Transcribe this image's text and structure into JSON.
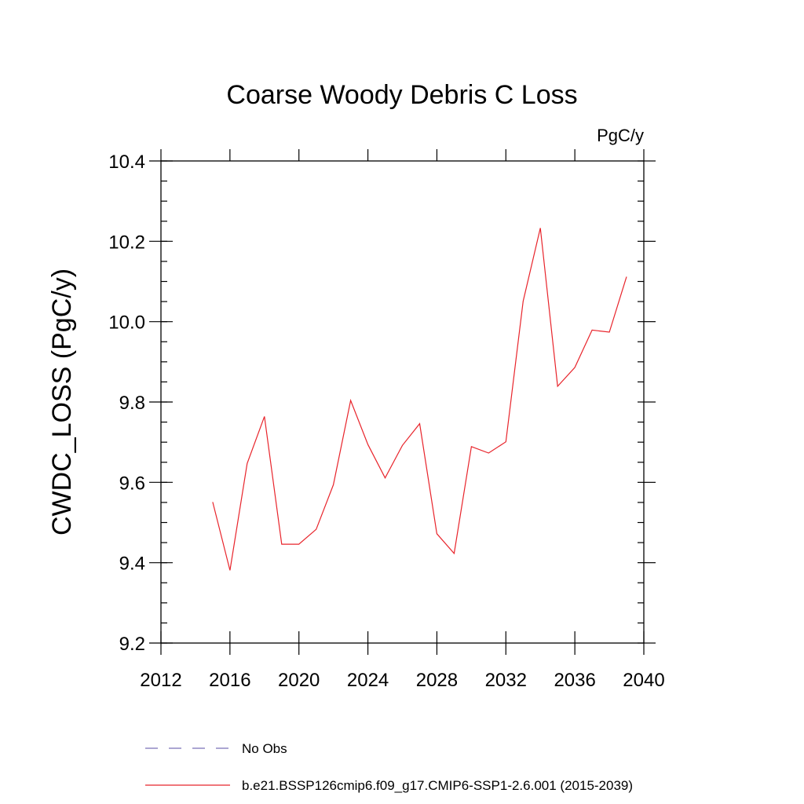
{
  "chart_data": {
    "type": "line",
    "title": "Coarse Woody Debris C Loss",
    "units": "PgC/y",
    "xlabel": "",
    "ylabel": "CWDC_LOSS  (PgC/y)",
    "xlim": [
      2012,
      2040
    ],
    "ylim": [
      9.2,
      10.4
    ],
    "x_ticks": [
      2012,
      2016,
      2020,
      2024,
      2028,
      2032,
      2036,
      2040
    ],
    "x_tick_labels": [
      "2012",
      "2016",
      "2020",
      "2024",
      "2028",
      "2032",
      "2036",
      "2040"
    ],
    "y_ticks": [
      9.2,
      9.4,
      9.6,
      9.8,
      10.0,
      10.2,
      10.4
    ],
    "y_tick_labels": [
      "9.2",
      "9.4",
      "9.6",
      "9.8",
      "10.0",
      "10.2",
      "10.4"
    ],
    "grid": false,
    "legend_position": "bottom",
    "series": [
      {
        "name": "b.e21.BSSP126cmip6.f09_g17.CMIP6-SSP1-2.6.001 (2015-2039)",
        "color": "#e8242b",
        "style": "solid",
        "x": [
          2015,
          2016,
          2017,
          2018,
          2019,
          2020,
          2021,
          2022,
          2023,
          2024,
          2025,
          2026,
          2027,
          2028,
          2029,
          2030,
          2031,
          2032,
          2033,
          2034,
          2035,
          2036,
          2037,
          2038,
          2039
        ],
        "y": [
          9.551,
          9.381,
          9.647,
          9.764,
          9.446,
          9.446,
          9.483,
          9.594,
          9.804,
          9.694,
          9.611,
          9.692,
          9.746,
          9.472,
          9.423,
          9.689,
          9.673,
          9.701,
          10.051,
          10.233,
          9.839,
          9.886,
          9.979,
          9.974,
          10.112
        ]
      }
    ],
    "legend": [
      {
        "label": "No Obs",
        "color": "#7a72b8",
        "style": "dashed"
      },
      {
        "label": "b.e21.BSSP126cmip6.f09_g17.CMIP6-SSP1-2.6.001 (2015-2039)",
        "color": "#e8242b",
        "style": "solid"
      }
    ]
  }
}
